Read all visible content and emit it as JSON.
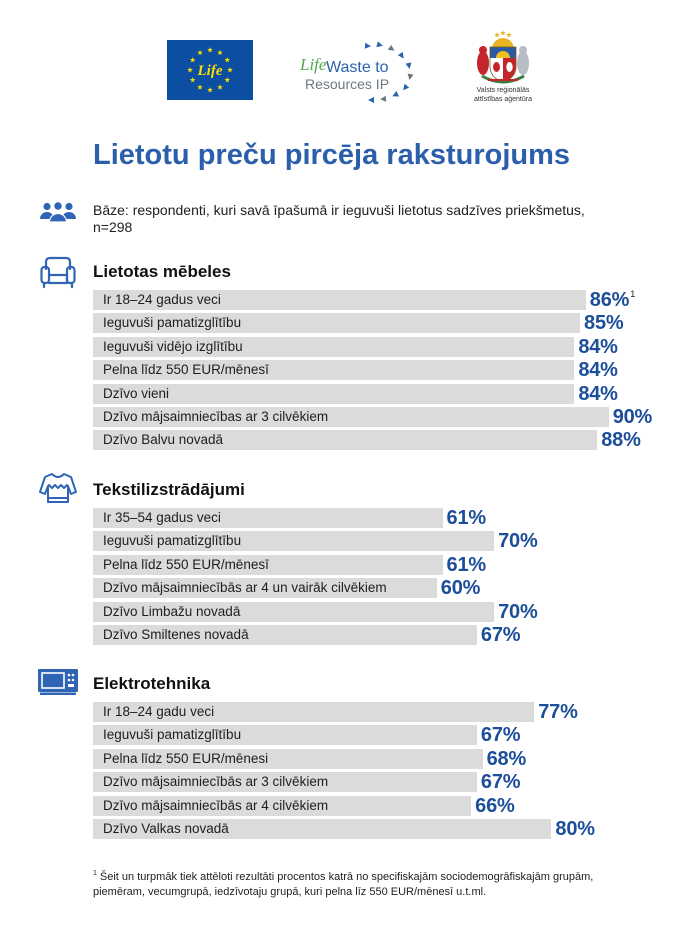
{
  "logos": {
    "eu_flag_text": "Life",
    "life_ip": {
      "life": "Life",
      "line1": "Waste to",
      "line2": "Resources IP"
    },
    "agency": {
      "line1": "Valsts reģionālās",
      "line2": "attīstības aģentūra"
    }
  },
  "title": "Lietotu preču pircēja raksturojums",
  "base": {
    "icon": "people-icon",
    "line1": "Bāze: respondenti, kuri savā īpašumā ir ieguvuši lietotus sadzīves priekšmetus,",
    "line2": "n=298"
  },
  "chart_data": [
    {
      "type": "bar",
      "orientation": "horizontal",
      "icon": "sofa-icon",
      "title": "Lietotas mēbeles",
      "categories": [
        "Ir 18–24 gadus veci",
        "Ieguvuši pamatizglītību",
        "Ieguvuši vidējo izglītību",
        "Pelna līdz 550 EUR/mēnesī",
        "Dzīvo vieni",
        "Dzīvo mājsaimniecības ar 3 cilvēkiem",
        "Dzīvo Balvu novadā"
      ],
      "values": [
        86,
        85,
        84,
        84,
        84,
        90,
        88
      ],
      "unit": "%",
      "annotations": [
        {
          "category_index": 0,
          "text": "1"
        }
      ]
    },
    {
      "type": "bar",
      "orientation": "horizontal",
      "icon": "sweater-icon",
      "title": "Tekstilizstrādājumi",
      "categories": [
        "Ir 35–54 gadus veci",
        "Ieguvuši pamatizglītību",
        "Pelna līdz 550 EUR/mēnesī",
        "Dzīvo mājsaimniecībās ar 4 un vairāk cilvēkiem",
        "Dzīvo Limbažu novadā",
        "Dzīvo Smiltenes novadā"
      ],
      "values": [
        61,
        70,
        61,
        60,
        70,
        67
      ],
      "unit": "%",
      "annotations": []
    },
    {
      "type": "bar",
      "orientation": "horizontal",
      "icon": "microwave-icon",
      "title": "Elektrotehnika",
      "categories": [
        "Ir 18–24 gadu veci",
        "Ieguvuši pamatizglītību",
        "Pelna līdz 550 EUR/mēnesi",
        "Dzīvo mājsaimniecībās ar 3 cilvēkiem",
        "Dzīvo mājsaimniecībās ar 4 cilvēkiem",
        "Dzīvo Valkas novadā"
      ],
      "values": [
        77,
        67,
        68,
        67,
        66,
        80
      ],
      "unit": "%",
      "annotations": []
    }
  ],
  "footnote": {
    "marker": "1",
    "line1": "Šeit un turpmāk tiek attēloti rezultāti procentos katrā no specifiskajām sociodemogrāfiskajām grupām,",
    "line2": "piemēram, vecumgrupā, iedzīvotaju grupā, kuri pelna līz 550 EUR/mēnesī u.t.ml."
  },
  "colors": {
    "title": "#2b5eab",
    "value": "#1c4e9a",
    "bar": "#dbdbdb",
    "icon": "#2f65b4",
    "eu_blue": "#0b4ea2",
    "eu_yellow": "#ffdd00"
  }
}
